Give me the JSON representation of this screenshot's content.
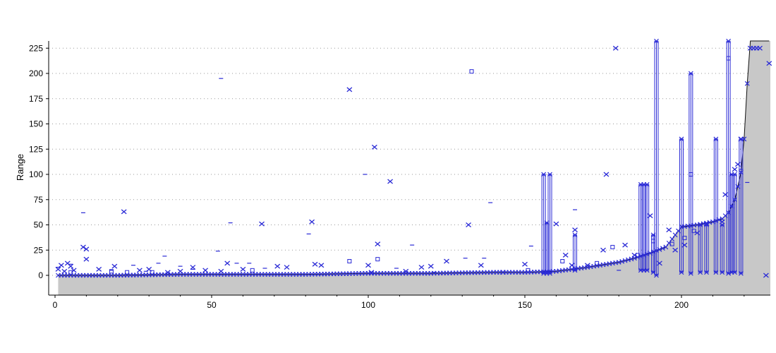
{
  "chart_data": {
    "type": "scatter",
    "title": "",
    "xlabel": "",
    "ylabel": "Range",
    "xlim": [
      0,
      228
    ],
    "ylim": [
      -20,
      233
    ],
    "x_ticks": [
      "0",
      "50",
      "100",
      "150",
      "200"
    ],
    "x_tick_values": [
      0,
      50,
      100,
      150,
      200
    ],
    "y_ticks": [
      "0",
      "25",
      "50",
      "75",
      "100",
      "125",
      "150",
      "175",
      "200",
      "225"
    ],
    "y_tick_values": [
      0,
      25,
      50,
      75,
      100,
      125,
      150,
      175,
      200,
      225
    ],
    "grid": "horizontal dotted",
    "colors": {
      "markers": "#2a2ad6",
      "area_fill": "#c8c8c8",
      "area_line": "#111111",
      "grid": "#9a9a9a"
    },
    "baseline_area": {
      "x": [
        1,
        20,
        40,
        60,
        80,
        100,
        120,
        140,
        150,
        160,
        170,
        180,
        185,
        190,
        195,
        198,
        200,
        205,
        210,
        213,
        215,
        217,
        218,
        219,
        220,
        221,
        222,
        228
      ],
      "y": [
        0,
        0,
        1,
        1,
        1,
        2,
        2,
        3,
        3,
        4,
        8,
        13,
        17,
        22,
        28,
        40,
        48,
        50,
        53,
        56,
        62,
        75,
        88,
        102,
        135,
        190,
        233,
        233
      ]
    },
    "range_bars": [
      {
        "x": 156,
        "low": 2,
        "mid": 27,
        "high": 100
      },
      {
        "x": 157,
        "low": 2,
        "mid": 52,
        "high": 52
      },
      {
        "x": 158,
        "low": 2,
        "mid": 27,
        "high": 100
      },
      {
        "x": 166,
        "low": 5,
        "mid": 20,
        "high": 40
      },
      {
        "x": 187,
        "low": 5,
        "mid": 30,
        "high": 90
      },
      {
        "x": 188,
        "low": 5,
        "mid": 40,
        "high": 90
      },
      {
        "x": 189,
        "low": 5,
        "mid": 35,
        "high": 90
      },
      {
        "x": 191,
        "low": 3,
        "mid": 20,
        "high": 40
      },
      {
        "x": 192,
        "low": 0,
        "mid": 150,
        "high": 232
      },
      {
        "x": 200,
        "low": 3,
        "mid": 77,
        "high": 135
      },
      {
        "x": 203,
        "low": 2,
        "mid": 100,
        "high": 200
      },
      {
        "x": 206,
        "low": 3,
        "mid": 38,
        "high": 50
      },
      {
        "x": 208,
        "low": 3,
        "mid": 38,
        "high": 50
      },
      {
        "x": 211,
        "low": 3,
        "mid": 82,
        "high": 135
      },
      {
        "x": 213,
        "low": 3,
        "mid": 38,
        "high": 50
      },
      {
        "x": 215,
        "low": 2,
        "mid": 215,
        "high": 232
      },
      {
        "x": 216,
        "low": 3,
        "mid": 70,
        "high": 100
      },
      {
        "x": 217,
        "low": 3,
        "mid": 70,
        "high": 100
      },
      {
        "x": 219,
        "low": 2,
        "mid": 90,
        "high": 135
      }
    ],
    "outliers_x": [
      [
        1,
        6
      ],
      [
        2,
        10
      ],
      [
        3,
        4
      ],
      [
        4,
        12
      ],
      [
        5,
        9
      ],
      [
        6,
        5
      ],
      [
        9,
        28
      ],
      [
        10,
        16
      ],
      [
        10,
        26
      ],
      [
        14,
        6
      ],
      [
        19,
        9
      ],
      [
        22,
        63
      ],
      [
        27,
        5
      ],
      [
        30,
        6
      ],
      [
        36,
        3
      ],
      [
        40,
        4
      ],
      [
        44,
        8
      ],
      [
        48,
        5
      ],
      [
        53,
        4
      ],
      [
        55,
        12
      ],
      [
        60,
        6
      ],
      [
        66,
        51
      ],
      [
        71,
        9
      ],
      [
        74,
        8
      ],
      [
        82,
        53
      ],
      [
        83,
        11
      ],
      [
        85,
        10
      ],
      [
        94,
        184
      ],
      [
        100,
        10
      ],
      [
        101,
        3
      ],
      [
        102,
        127
      ],
      [
        103,
        31
      ],
      [
        107,
        93
      ],
      [
        112,
        4
      ],
      [
        117,
        8
      ],
      [
        120,
        9
      ],
      [
        125,
        14
      ],
      [
        132,
        50
      ],
      [
        136,
        10
      ],
      [
        143,
        3
      ],
      [
        150,
        11
      ],
      [
        160,
        51
      ],
      [
        163,
        20
      ],
      [
        165,
        10
      ],
      [
        166,
        45
      ],
      [
        170,
        10
      ],
      [
        175,
        25
      ],
      [
        176,
        100
      ],
      [
        179,
        225
      ],
      [
        182,
        30
      ],
      [
        185,
        20
      ],
      [
        190,
        59
      ],
      [
        193,
        12
      ],
      [
        196,
        45
      ],
      [
        198,
        25
      ],
      [
        201,
        30
      ],
      [
        205,
        42
      ],
      [
        208,
        51
      ],
      [
        213,
        53
      ],
      [
        214,
        80
      ],
      [
        217,
        105
      ],
      [
        218,
        110
      ],
      [
        219,
        135
      ],
      [
        222,
        225
      ],
      [
        223,
        225
      ],
      [
        224,
        225
      ],
      [
        225,
        225
      ],
      [
        227,
        0
      ],
      [
        228,
        210
      ]
    ],
    "outliers_box": [
      [
        5,
        3
      ],
      [
        18,
        4
      ],
      [
        23,
        3
      ],
      [
        31,
        3
      ],
      [
        63,
        5
      ],
      [
        94,
        14
      ],
      [
        103,
        16
      ],
      [
        133,
        202
      ],
      [
        151,
        5
      ],
      [
        162,
        14
      ],
      [
        173,
        12
      ],
      [
        178,
        28
      ],
      [
        186,
        20
      ],
      [
        191,
        34
      ],
      [
        197,
        31
      ],
      [
        201,
        37
      ],
      [
        203,
        100
      ],
      [
        204,
        44
      ],
      [
        215,
        215
      ]
    ],
    "outliers_dash": [
      [
        1,
        8
      ],
      [
        5,
        11
      ],
      [
        9,
        62
      ],
      [
        18,
        5
      ],
      [
        25,
        10
      ],
      [
        29,
        4
      ],
      [
        33,
        12
      ],
      [
        35,
        19
      ],
      [
        40,
        9
      ],
      [
        44,
        6
      ],
      [
        52,
        24
      ],
      [
        53,
        195
      ],
      [
        56,
        52
      ],
      [
        58,
        12
      ],
      [
        62,
        12
      ],
      [
        67,
        7
      ],
      [
        81,
        41
      ],
      [
        99,
        100
      ],
      [
        109,
        7
      ],
      [
        114,
        30
      ],
      [
        121,
        3
      ],
      [
        131,
        17
      ],
      [
        137,
        17
      ],
      [
        139,
        72
      ],
      [
        152,
        29
      ],
      [
        166,
        65
      ],
      [
        180,
        5
      ],
      [
        219,
        105
      ],
      [
        221,
        92
      ]
    ]
  }
}
